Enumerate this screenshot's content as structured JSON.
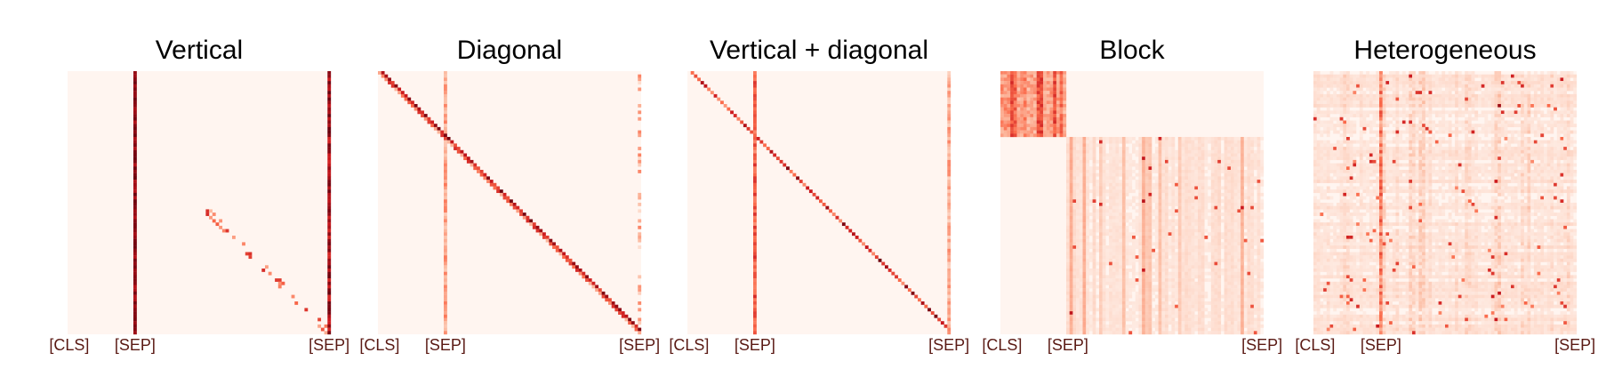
{
  "chart_data": [
    {
      "type": "heatmap",
      "title": "Vertical",
      "pattern": "vertical",
      "tick_labels": [
        "[CLS]",
        "[SEP]",
        "[SEP]"
      ],
      "colormap": [
        "#fff5f0",
        "#fcbba1",
        "#fb6a4a",
        "#cb181d",
        "#67000d"
      ]
    },
    {
      "type": "heatmap",
      "title": "Diagonal",
      "pattern": "diagonal",
      "tick_labels": [
        "[CLS]",
        "[SEP]",
        "[SEP]"
      ],
      "colormap": [
        "#fff5f0",
        "#fcbba1",
        "#fb6a4a",
        "#cb181d",
        "#67000d"
      ]
    },
    {
      "type": "heatmap",
      "title": "Vertical + diagonal",
      "pattern": "vertical+diagonal",
      "tick_labels": [
        "[CLS]",
        "[SEP]",
        "[SEP]"
      ],
      "colormap": [
        "#fff5f0",
        "#fcbba1",
        "#fb6a4a",
        "#cb181d",
        "#67000d"
      ]
    },
    {
      "type": "heatmap",
      "title": "Block",
      "pattern": "block",
      "tick_labels": [
        "[CLS]",
        "[SEP]",
        "[SEP]"
      ],
      "colormap": [
        "#fff5f0",
        "#fcbba1",
        "#fb6a4a",
        "#cb181d",
        "#67000d"
      ]
    },
    {
      "type": "heatmap",
      "title": "Heterogeneous",
      "pattern": "heterogeneous",
      "tick_labels": [
        "[CLS]",
        "[SEP]",
        "[SEP]"
      ],
      "colormap": [
        "#fff5f0",
        "#fcbba1",
        "#fb6a4a",
        "#cb181d",
        "#67000d"
      ]
    }
  ]
}
